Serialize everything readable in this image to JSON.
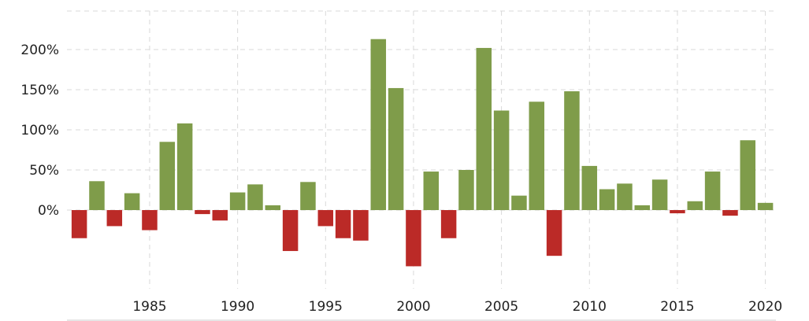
{
  "chart_data": {
    "type": "bar",
    "title": "",
    "xlabel": "",
    "ylabel": "",
    "x": [
      1981,
      1982,
      1983,
      1984,
      1985,
      1986,
      1987,
      1988,
      1989,
      1990,
      1991,
      1992,
      1993,
      1994,
      1995,
      1996,
      1997,
      1998,
      1999,
      2000,
      2001,
      2002,
      2003,
      2004,
      2005,
      2006,
      2007,
      2008,
      2009,
      2010,
      2011,
      2012,
      2013,
      2014,
      2015,
      2016,
      2017,
      2018,
      2019,
      2020
    ],
    "values": [
      -35,
      36,
      -20,
      21,
      -25,
      85,
      108,
      -5,
      -13,
      22,
      32,
      6,
      -51,
      35,
      -20,
      -35,
      -38,
      213,
      152,
      -70,
      48,
      -35,
      50,
      202,
      124,
      18,
      135,
      -57,
      148,
      55,
      26,
      33,
      6,
      38,
      -4,
      11,
      48,
      -7,
      87,
      9
    ],
    "x_ticks": [
      1985,
      1990,
      1995,
      2000,
      2005,
      2010,
      2015,
      2020
    ],
    "x_tick_labels": [
      "1985",
      "1990",
      "1995",
      "2000",
      "2005",
      "2010",
      "2015",
      "2020"
    ],
    "y_ticks": [
      0,
      50,
      100,
      150,
      200
    ],
    "y_tick_labels": [
      "0%",
      "50%",
      "100%",
      "150%",
      "200%"
    ],
    "ylim": [
      -98,
      248
    ],
    "xlim": [
      1980.3,
      2020.6
    ],
    "grid": true,
    "legend": "none",
    "colors": {
      "positive": "#7f9c4a",
      "negative": "#bb2a27",
      "grid": "#d9d9d9",
      "axis": "#cccccc"
    }
  }
}
